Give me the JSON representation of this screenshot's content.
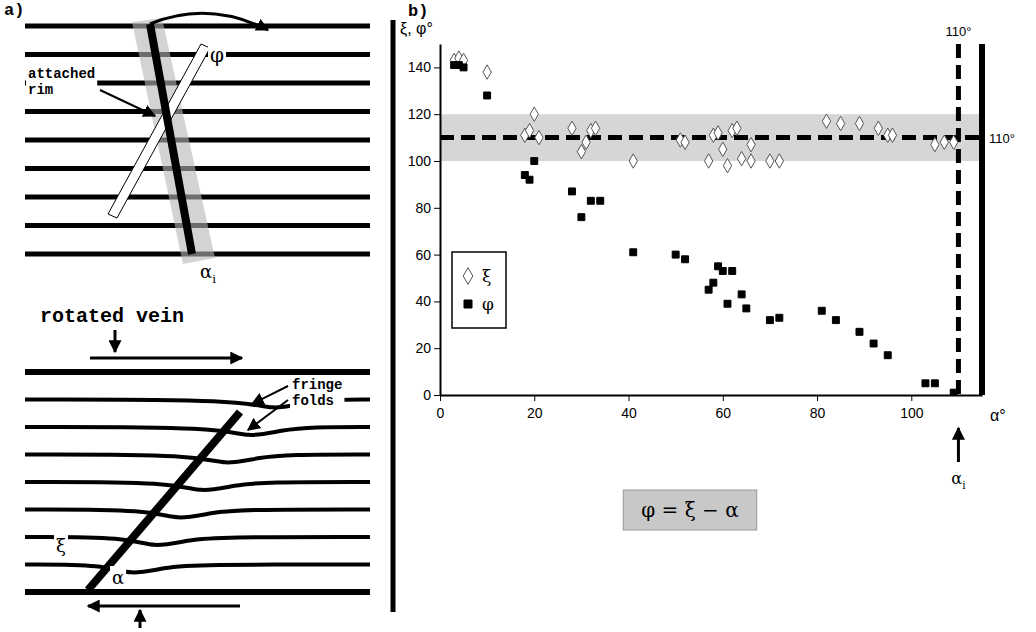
{
  "chart_data": {
    "type": "scatter",
    "panel_label": "b)",
    "y_label": "ξ, φ°",
    "x_label": "α°",
    "xlim": [
      0,
      115
    ],
    "ylim": [
      0,
      150
    ],
    "xticks": [
      0,
      20,
      40,
      60,
      80,
      100
    ],
    "yticks": [
      0,
      20,
      40,
      60,
      80,
      100,
      120,
      140
    ],
    "grid": false,
    "legend": "left",
    "series": [
      {
        "name": "ξ",
        "color": "#555555",
        "marker": "diamond-open",
        "x": [
          3,
          4,
          5,
          10,
          18,
          19,
          20,
          21,
          28,
          30,
          31,
          32,
          33,
          41,
          51,
          52,
          57,
          58,
          59,
          60,
          61,
          62,
          63,
          64,
          66,
          66,
          70,
          72,
          82,
          85,
          89,
          93,
          95,
          96,
          105,
          107,
          109
        ],
        "values": [
          143,
          144,
          143,
          138,
          111,
          113,
          120,
          110,
          114,
          104,
          108,
          113,
          114,
          100,
          109,
          108,
          100,
          111,
          112,
          105,
          98,
          113,
          114,
          101,
          107,
          100,
          100,
          100,
          117,
          116,
          116,
          114,
          111,
          111,
          107,
          108,
          108
        ]
      },
      {
        "name": "φ",
        "color": "#000000",
        "marker": "square",
        "x": [
          3,
          4,
          5,
          10,
          18,
          19,
          20,
          28,
          30,
          32,
          34,
          41,
          50,
          52,
          57,
          58,
          59,
          60,
          61,
          62,
          64,
          65,
          70,
          72,
          81,
          84,
          89,
          92,
          95,
          103,
          105,
          109
        ],
        "values": [
          141,
          141,
          140,
          128,
          94,
          92,
          100,
          87,
          76,
          83,
          83,
          61,
          60,
          58,
          45,
          48,
          55,
          53,
          39,
          53,
          43,
          37,
          32,
          33,
          36,
          32,
          27,
          22,
          17,
          5,
          5,
          1
        ]
      }
    ],
    "band": [
      100,
      120
    ],
    "reference_lines": [
      {
        "axis": "y",
        "value": 110,
        "label": "110°"
      },
      {
        "axis": "x",
        "value": 110,
        "label": "110°",
        "pointer_label": {
          "base": "α",
          "sub": "i"
        }
      }
    ],
    "equation": "φ = ξ − α"
  },
  "diagram": {
    "panel_label": "a)",
    "top": {
      "angle_label": "φ",
      "rim_label": "attached rim",
      "initial_angle": {
        "base": "α",
        "sub": "i"
      }
    },
    "bottom": {
      "title": "rotated vein",
      "fold_label": "fringe folds",
      "xi_label": "ξ",
      "alpha_label": "α"
    }
  }
}
